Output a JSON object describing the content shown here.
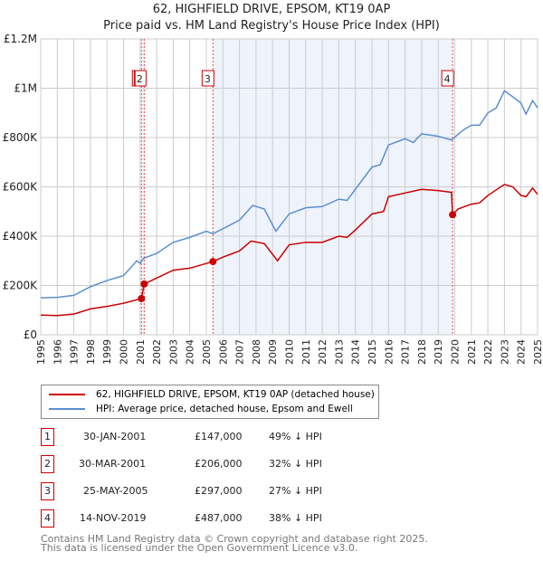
{
  "chart_data": {
    "type": "line",
    "title": "62, HIGHFIELD DRIVE, EPSOM, KT19 0AP",
    "subtitle": "Price paid vs. HM Land Registry's House Price Index (HPI)",
    "xlim": [
      1995,
      2025
    ],
    "ylim": [
      0,
      1200000
    ],
    "x_ticks": [
      "1995",
      "1996",
      "1997",
      "1998",
      "1999",
      "2000",
      "2001",
      "2002",
      "2003",
      "2004",
      "2005",
      "2006",
      "2007",
      "2008",
      "2009",
      "2010",
      "2011",
      "2012",
      "2013",
      "2014",
      "2015",
      "2016",
      "2017",
      "2018",
      "2019",
      "2020",
      "2021",
      "2022",
      "2023",
      "2024",
      "2025"
    ],
    "y_ticks": [
      {
        "v": 0,
        "label": "£0"
      },
      {
        "v": 200000,
        "label": "£200K"
      },
      {
        "v": 400000,
        "label": "£400K"
      },
      {
        "v": 600000,
        "label": "£600K"
      },
      {
        "v": 800000,
        "label": "£800K"
      },
      {
        "v": 1000000,
        "label": "£1M"
      },
      {
        "v": 1200000,
        "label": "£1.2M"
      }
    ],
    "grid": true,
    "series": [
      {
        "name": "62, HIGHFIELD DRIVE, EPSOM, KT19 0AP (detached house)",
        "color": "#cc0000",
        "x": [
          1995,
          1996,
          1997,
          1998,
          1999,
          2000,
          2001.08,
          2001.25,
          2002,
          2003,
          2004,
          2005.4,
          2006,
          2007,
          2007.7,
          2008.5,
          2009.3,
          2010,
          2011,
          2012,
          2013,
          2013.5,
          2014,
          2015,
          2015.7,
          2016,
          2017,
          2018,
          2019,
          2019.8,
          2019.87,
          2020.2,
          2021,
          2021.5,
          2022,
          2023,
          2023.5,
          2024,
          2024.3,
          2024.7,
          2025
        ],
        "y": [
          80000,
          78000,
          84000,
          105000,
          115000,
          128000,
          147000,
          206000,
          230000,
          262000,
          270000,
          297000,
          315000,
          340000,
          380000,
          370000,
          300000,
          365000,
          375000,
          375000,
          400000,
          395000,
          425000,
          490000,
          500000,
          560000,
          575000,
          590000,
          585000,
          578000,
          487000,
          510000,
          530000,
          535000,
          565000,
          610000,
          600000,
          565000,
          560000,
          595000,
          570000
        ]
      },
      {
        "name": "HPI: Average price, detached house, Epsom and Ewell",
        "color": "#5b8fd0",
        "x": [
          1995,
          1996,
          1997,
          1998,
          1999,
          2000,
          2000.8,
          2001,
          2001.2,
          2002,
          2003,
          2004,
          2005,
          2005.4,
          2006,
          2007,
          2007.8,
          2008.5,
          2009.2,
          2010,
          2011,
          2012,
          2013,
          2013.5,
          2014,
          2015,
          2015.5,
          2016,
          2017,
          2017.5,
          2018,
          2019,
          2019.8,
          2020.5,
          2021,
          2021.5,
          2022,
          2022.5,
          2023,
          2023.5,
          2024,
          2024.3,
          2024.7,
          2025
        ],
        "y": [
          150000,
          152000,
          160000,
          195000,
          220000,
          240000,
          300000,
          290000,
          310000,
          330000,
          375000,
          395000,
          420000,
          410000,
          430000,
          465000,
          525000,
          510000,
          420000,
          490000,
          515000,
          520000,
          550000,
          545000,
          590000,
          680000,
          690000,
          770000,
          795000,
          780000,
          815000,
          805000,
          790000,
          830000,
          850000,
          850000,
          900000,
          920000,
          990000,
          965000,
          940000,
          895000,
          950000,
          920000
        ]
      }
    ],
    "shaded_ranges": [
      [
        2001.08,
        2001.25
      ],
      [
        2005.4,
        2019.87
      ]
    ],
    "sales": [
      {
        "label": "1",
        "x": 2001.08,
        "y": 147000,
        "date": "30-JAN-2001",
        "price": "£147,000",
        "hpi": "49% ↓ HPI"
      },
      {
        "label": "2",
        "x": 2001.25,
        "y": 206000,
        "date": "30-MAR-2001",
        "price": "£206,000",
        "hpi": "32% ↓ HPI"
      },
      {
        "label": "3",
        "x": 2005.4,
        "y": 297000,
        "date": "25-MAY-2005",
        "price": "£297,000",
        "hpi": "27% ↓ HPI"
      },
      {
        "label": "4",
        "x": 2019.87,
        "y": 487000,
        "date": "14-NOV-2019",
        "price": "£487,000",
        "hpi": "38% ↓ HPI"
      }
    ]
  },
  "legend": {
    "red": "62, HIGHFIELD DRIVE, EPSOM, KT19 0AP (detached house)",
    "blue": "HPI: Average price, detached house, Epsom and Ewell"
  },
  "footer": {
    "line1": "Contains HM Land Registry data © Crown copyright and database right 2025.",
    "line2": "This data is licensed under the Open Government Licence v3.0."
  }
}
